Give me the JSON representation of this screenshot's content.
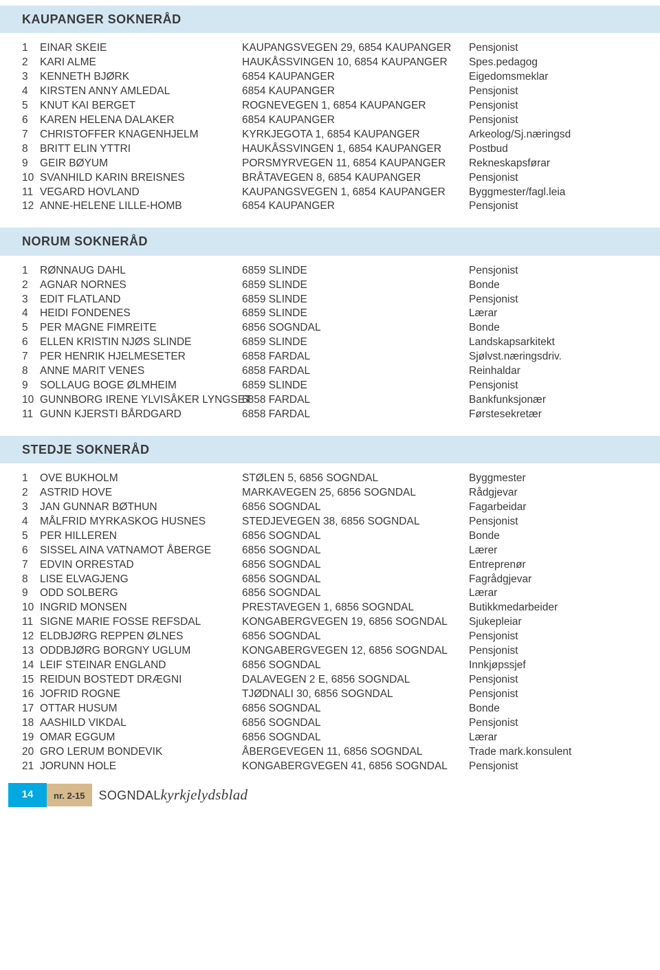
{
  "header_bg": "#d3e7f2",
  "text_color": "#3a3a3a",
  "footer": {
    "page_bg": "#00a9e0",
    "page_text_color": "#ffffff",
    "issue_bg": "#d6b98c",
    "page": "14",
    "issue": "nr. 2-15",
    "title_part1": "SOGNDAL",
    "title_part2": "kyrkjelydsblad"
  },
  "sections": [
    {
      "title": "KAUPANGER SOKNERÅD",
      "rows": [
        {
          "n": "1",
          "name": "EINAR SKEIE",
          "addr": "KAUPANGSVEGEN 29, 6854 KAUPANGER",
          "occ": "Pensjonist"
        },
        {
          "n": "2",
          "name": "KARI ALME",
          "addr": "HAUKÅSSVINGEN 10, 6854 KAUPANGER",
          "occ": "Spes.pedagog"
        },
        {
          "n": "3",
          "name": "KENNETH BJØRK",
          "addr": "6854 KAUPANGER",
          "occ": "Eigedomsmeklar"
        },
        {
          "n": "4",
          "name": "KIRSTEN ANNY AMLEDAL",
          "addr": "6854 KAUPANGER",
          "occ": "Pensjonist"
        },
        {
          "n": "5",
          "name": "KNUT KAI BERGET",
          "addr": "ROGNEVEGEN 1, 6854 KAUPANGER",
          "occ": "Pensjonist"
        },
        {
          "n": "6",
          "name": "KAREN HELENA DALAKER",
          "addr": "6854 KAUPANGER",
          "occ": "Pensjonist"
        },
        {
          "n": "7",
          "name": "CHRISTOFFER KNAGENHJELM",
          "addr": "KYRKJEGOTA 1, 6854 KAUPANGER",
          "occ": "Arkeolog/Sj.næringsd"
        },
        {
          "n": "8",
          "name": "BRITT ELIN YTTRI",
          "addr": "HAUKÅSSVINGEN 1, 6854 KAUPANGER",
          "occ": "Postbud"
        },
        {
          "n": "9",
          "name": "GEIR BØYUM",
          "addr": "PORSMYRVEGEN 11, 6854 KAUPANGER",
          "occ": "Rekneskapsførar"
        },
        {
          "n": "10",
          "name": "SVANHILD KARIN BREISNES",
          "addr": "BRÅTAVEGEN 8, 6854 KAUPANGER",
          "occ": "Pensjonist"
        },
        {
          "n": "11",
          "name": "VEGARD HOVLAND",
          "addr": "KAUPANGSVEGEN 1, 6854 KAUPANGER",
          "occ": "Byggmester/fagl.leia"
        },
        {
          "n": "12",
          "name": "ANNE-HELENE LILLE-HOMB",
          "addr": "6854 KAUPANGER",
          "occ": "Pensjonist"
        }
      ]
    },
    {
      "title": "NORUM SOKNERÅD",
      "rows": [
        {
          "n": "1",
          "name": "RØNNAUG DAHL",
          "addr": "6859 SLINDE",
          "occ": "Pensjonist"
        },
        {
          "n": "2",
          "name": "AGNAR NORNES",
          "addr": "6859 SLINDE",
          "occ": "Bonde"
        },
        {
          "n": "3",
          "name": "EDIT FLATLAND",
          "addr": "6859 SLINDE",
          "occ": "Pensjonist"
        },
        {
          "n": "4",
          "name": "HEIDI FONDENES",
          "addr": "6859 SLINDE",
          "occ": "Lærar"
        },
        {
          "n": "5",
          "name": "PER MAGNE FIMREITE",
          "addr": "6856 SOGNDAL",
          "occ": "Bonde"
        },
        {
          "n": "6",
          "name": "ELLEN KRISTIN NJØS SLINDE",
          "addr": "6859 SLINDE",
          "occ": "Landskapsarkitekt"
        },
        {
          "n": "7",
          "name": "PER HENRIK HJELMESETER",
          "addr": "6858 FARDAL",
          "occ": "Sjølvst.næringsdriv."
        },
        {
          "n": "8",
          "name": "ANNE MARIT VENES",
          "addr": "6858 FARDAL",
          "occ": "Reinhaldar"
        },
        {
          "n": "9",
          "name": "SOLLAUG BOGE ØLMHEIM",
          "addr": "6859 SLINDE",
          "occ": "Pensjonist"
        },
        {
          "n": "10",
          "name": "GUNNBORG IRENE YLVISÅKER LYNGSET",
          "addr": "6858 FARDAL",
          "occ": "Bankfunksjonær"
        },
        {
          "n": "11",
          "name": "GUNN KJERSTI BÅRDGARD",
          "addr": "6858 FARDAL",
          "occ": "Førstesekretær"
        }
      ]
    },
    {
      "title": "STEDJE SOKNERÅD",
      "rows": [
        {
          "n": "1",
          "name": "OVE BUKHOLM",
          "addr": "STØLEN 5, 6856 SOGNDAL",
          "occ": "Byggmester"
        },
        {
          "n": "2",
          "name": "ASTRID HOVE",
          "addr": "MARKAVEGEN 25, 6856 SOGNDAL",
          "occ": "Rådgjevar"
        },
        {
          "n": "3",
          "name": "JAN GUNNAR BØTHUN",
          "addr": "6856 SOGNDAL",
          "occ": "Fagarbeidar"
        },
        {
          "n": "4",
          "name": "MÅLFRID MYRKASKOG HUSNES",
          "addr": "STEDJEVEGEN 38, 6856 SOGNDAL",
          "occ": "Pensjonist"
        },
        {
          "n": "5",
          "name": "PER HILLEREN",
          "addr": "6856 SOGNDAL",
          "occ": "Bonde"
        },
        {
          "n": "6",
          "name": "SISSEL AINA VATNAMOT ÅBERGE",
          "addr": "6856 SOGNDAL",
          "occ": "Lærer"
        },
        {
          "n": "7",
          "name": "EDVIN ORRESTAD",
          "addr": "6856 SOGNDAL",
          "occ": "Entreprenør"
        },
        {
          "n": "8",
          "name": "LISE ELVAGJENG",
          "addr": "6856 SOGNDAL",
          "occ": "Fagrådgjevar"
        },
        {
          "n": "9",
          "name": "ODD SOLBERG",
          "addr": "6856 SOGNDAL",
          "occ": "Lærar"
        },
        {
          "n": "10",
          "name": "INGRID MONSEN",
          "addr": "PRESTAVEGEN 1, 6856 SOGNDAL",
          "occ": "Butikkmedarbeider"
        },
        {
          "n": "11",
          "name": "SIGNE MARIE FOSSE REFSDAL",
          "addr": "KONGABERGVEGEN 19, 6856 SOGNDAL",
          "occ": "Sjukepleiar"
        },
        {
          "n": "12",
          "name": "ELDBJØRG REPPEN ØLNES",
          "addr": "6856 SOGNDAL",
          "occ": "Pensjonist"
        },
        {
          "n": "13",
          "name": "ODDBJØRG BORGNY UGLUM",
          "addr": "KONGABERGVEGEN 12, 6856 SOGNDAL",
          "occ": "Pensjonist"
        },
        {
          "n": "14",
          "name": "LEIF STEINAR ENGLAND",
          "addr": "6856 SOGNDAL",
          "occ": "Innkjøpssjef"
        },
        {
          "n": "15",
          "name": "REIDUN BOSTEDT DRÆGNI",
          "addr": "DALAVEGEN 2 E, 6856 SOGNDAL",
          "occ": "Pensjonist"
        },
        {
          "n": "16",
          "name": "JOFRID ROGNE",
          "addr": "TJØDNALI 30, 6856 SOGNDAL",
          "occ": "Pensjonist"
        },
        {
          "n": "17",
          "name": "OTTAR HUSUM",
          "addr": "6856 SOGNDAL",
          "occ": "Bonde"
        },
        {
          "n": "18",
          "name": "AASHILD VIKDAL",
          "addr": "6856 SOGNDAL",
          "occ": "Pensjonist"
        },
        {
          "n": "19",
          "name": "OMAR EGGUM",
          "addr": "6856 SOGNDAL",
          "occ": "Lærar"
        },
        {
          "n": "20",
          "name": "GRO LERUM BONDEVIK",
          "addr": "ÅBERGEVEGEN 11, 6856 SOGNDAL",
          "occ": "Trade mark.konsulent"
        },
        {
          "n": "21",
          "name": "JORUNN HOLE",
          "addr": "KONGABERGVEGEN 41, 6856 SOGNDAL",
          "occ": "Pensjonist"
        }
      ]
    }
  ]
}
